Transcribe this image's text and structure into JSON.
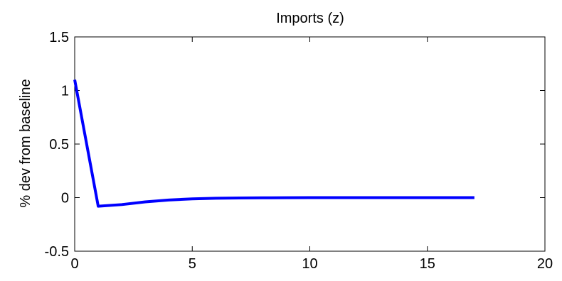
{
  "chart_data": {
    "type": "line",
    "title": "Imports (z)",
    "xlabel": "",
    "ylabel": "% dev from baseline",
    "xlim": [
      0,
      20
    ],
    "ylim": [
      -0.5,
      1.5
    ],
    "xticks": [
      0,
      5,
      10,
      15,
      20
    ],
    "yticks": [
      -0.5,
      0,
      0.5,
      1,
      1.5
    ],
    "xtick_labels": [
      "0",
      "5",
      "10",
      "15",
      "20"
    ],
    "ytick_labels": [
      "-0.5",
      "0",
      "0.5",
      "1",
      "1.5"
    ],
    "grid": false,
    "series": [
      {
        "color": "#0000ff",
        "x": [
          0,
          1,
          2,
          3,
          4,
          5,
          6,
          7,
          8,
          9,
          10,
          11,
          12,
          13,
          14,
          15,
          16,
          17
        ],
        "y": [
          1.1,
          -0.08,
          -0.065,
          -0.04,
          -0.022,
          -0.012,
          -0.006,
          -0.003,
          -0.0015,
          -0.0008,
          -0.0004,
          -0.0002,
          -0.0001,
          0,
          0,
          0,
          0,
          0
        ]
      }
    ]
  }
}
